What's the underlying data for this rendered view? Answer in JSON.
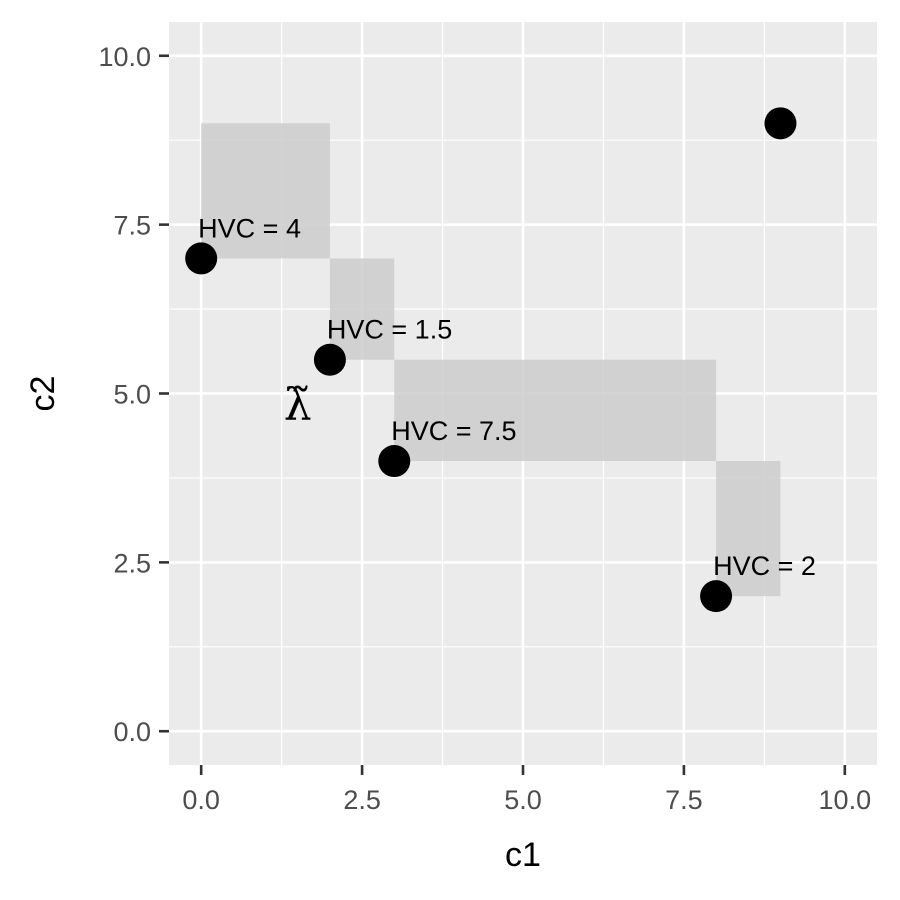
{
  "chart_data": {
    "type": "scatter",
    "title": "",
    "xlabel": "c1",
    "ylabel": "c2",
    "xlim": [
      -0.5,
      10.5
    ],
    "ylim": [
      -0.5,
      10.5
    ],
    "x_ticks": [
      0,
      2.5,
      5,
      7.5,
      10
    ],
    "x_tick_labels": [
      "0.0",
      "2.5",
      "5.0",
      "7.5",
      "10.0"
    ],
    "y_ticks": [
      0,
      2.5,
      5,
      7.5,
      10
    ],
    "y_tick_labels": [
      "0.0",
      "2.5",
      "5.0",
      "7.5",
      "10.0"
    ],
    "grid": true,
    "points": [
      {
        "x": 0,
        "y": 7,
        "label": "HVC = 4"
      },
      {
        "x": 2,
        "y": 5.5,
        "label": "HVC = 1.5"
      },
      {
        "x": 3,
        "y": 4,
        "label": "HVC = 7.5"
      },
      {
        "x": 8,
        "y": 2,
        "label": "HVC = 2"
      },
      {
        "x": 9,
        "y": 9,
        "label": ""
      }
    ],
    "rectangles": [
      {
        "xmin": 0,
        "xmax": 2,
        "ymin": 7,
        "ymax": 9
      },
      {
        "xmin": 2,
        "xmax": 3,
        "ymin": 5.5,
        "ymax": 7
      },
      {
        "xmin": 3,
        "xmax": 8,
        "ymin": 4,
        "ymax": 5.5
      },
      {
        "xmin": 8,
        "xmax": 9,
        "ymin": 2,
        "ymax": 4
      }
    ],
    "annotation": {
      "text": "λ̃",
      "x": 1.5,
      "y": 5
    }
  },
  "colors": {
    "panel_bg": "#ebebeb",
    "grid": "#ffffff",
    "rect_fill": "#cccccc",
    "point": "#000000",
    "axis_text": "#4d4d4d"
  }
}
